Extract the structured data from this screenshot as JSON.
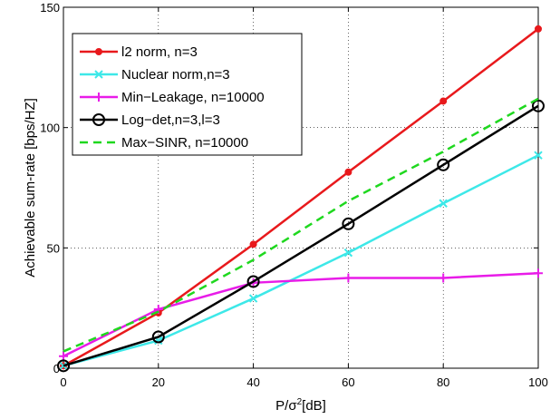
{
  "chart_data": {
    "type": "line",
    "title": "",
    "xlabel_main": "P/σ",
    "xlabel_sup": "2",
    "xlabel_tail": "[dB]",
    "ylabel": "Achievable sum-rate [bps/HZ]",
    "xlim": [
      0,
      100
    ],
    "ylim": [
      0,
      150
    ],
    "x_ticks": [
      0,
      20,
      40,
      60,
      80,
      100
    ],
    "y_ticks": [
      0,
      50,
      100,
      150
    ],
    "grid": true,
    "legend_position": "top-left",
    "x": [
      0,
      20,
      40,
      60,
      80,
      100
    ],
    "series": [
      {
        "name": "l2 norm, n=3",
        "color": "#e8191c",
        "dash": "solid",
        "marker": "dot",
        "values": [
          1,
          23,
          51.5,
          81.5,
          111,
          141
        ]
      },
      {
        "name": "Nuclear norm,n=3",
        "color": "#3de8e8",
        "dash": "solid",
        "marker": "x",
        "values": [
          1,
          11.5,
          29,
          48,
          68.5,
          88.5
        ]
      },
      {
        "name": "Min−Leakage, n=10000",
        "color": "#e81ce8",
        "dash": "solid",
        "marker": "plus",
        "values": [
          5,
          24.5,
          35.5,
          37.5,
          37.5,
          39.5
        ]
      },
      {
        "name": "Log−det,n=3,l=3",
        "color": "#000000",
        "dash": "solid",
        "marker": "circle",
        "values": [
          1,
          13,
          36,
          60,
          84.5,
          109
        ]
      },
      {
        "name": "Max−SINR, n=10000",
        "color": "#1fd81f",
        "dash": "dashed",
        "marker": "none",
        "values": [
          7,
          23.5,
          45,
          69.5,
          90,
          112
        ]
      }
    ]
  }
}
